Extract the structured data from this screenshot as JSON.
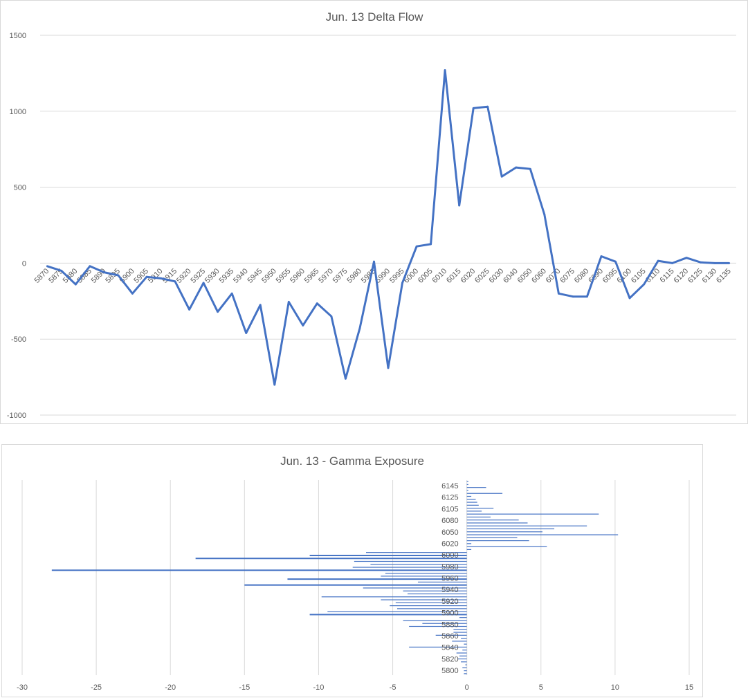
{
  "chart_data": [
    {
      "type": "line",
      "title": "Jun. 13 Delta Flow",
      "xlabel": "",
      "ylabel": "",
      "ylim": [
        -1000,
        1500
      ],
      "yticks": [
        1500,
        1000,
        500,
        0,
        -500,
        -1000
      ],
      "grid": true,
      "legend": "none",
      "color": "#4472c4",
      "x": [
        "5870",
        "5875",
        "5880",
        "5885",
        "5890",
        "5895",
        "5900",
        "5905",
        "5910",
        "5915",
        "5920",
        "5925",
        "5930",
        "5935",
        "5940",
        "5945",
        "5950",
        "5955",
        "5960",
        "5965",
        "5970",
        "5975",
        "5980",
        "5985",
        "5990",
        "5995",
        "6000",
        "6005",
        "6010",
        "6015",
        "6020",
        "6025",
        "6030",
        "6040",
        "6050",
        "6060",
        "6070",
        "6075",
        "6080",
        "6090",
        "6095",
        "6100",
        "6105",
        "6110",
        "6115",
        "6120",
        "6125",
        "6130",
        "6135"
      ],
      "y": [
        -20,
        -50,
        -140,
        -20,
        -60,
        -80,
        -200,
        -90,
        -100,
        -120,
        -305,
        -130,
        -320,
        -200,
        -460,
        -275,
        -800,
        -255,
        -410,
        -265,
        -350,
        -760,
        -430,
        10,
        -690,
        -130,
        110,
        125,
        1270,
        380,
        1020,
        1030,
        570,
        630,
        620,
        320,
        -200,
        -220,
        -220,
        45,
        10,
        -230,
        -140,
        15,
        0,
        35,
        5,
        0,
        0
      ]
    },
    {
      "type": "bar",
      "orientation": "horizontal",
      "title": "Jun. 13 - Gamma Exposure",
      "xlabel": "",
      "ylabel": "",
      "xlim": [
        -30,
        15
      ],
      "xticks": [
        -30,
        -25,
        -20,
        -15,
        -10,
        -5,
        0,
        5,
        10,
        15
      ],
      "grid": true,
      "legend": "none",
      "color": "#4472c4",
      "category_labels": [
        "5800",
        "5820",
        "5840",
        "5860",
        "5880",
        "5900",
        "5920",
        "5940",
        "5960",
        "5980",
        "6000",
        "6020",
        "6050",
        "6080",
        "6105",
        "6125",
        "6145"
      ],
      "values": [
        -0.2,
        -0.2,
        -0.3,
        -0.1,
        -0.4,
        -0.6,
        -0.5,
        -0.7,
        -0.3,
        -3.9,
        -0.2,
        -1.0,
        -0.4,
        -2.1,
        -0.9,
        -0.9,
        -3.9,
        -3.0,
        -4.3,
        -0.5,
        -10.6,
        -9.4,
        -4.7,
        -5.2,
        -4.8,
        -5.8,
        -9.8,
        -4.0,
        -4.3,
        -7.0,
        -15.0,
        -3.3,
        -12.1,
        -5.8,
        -5.5,
        -28.0,
        -7.7,
        -6.5,
        -7.6,
        -18.3,
        -10.6,
        -6.8,
        0.3,
        5.4,
        0.3,
        4.2,
        3.4,
        10.2,
        5.1,
        5.9,
        8.1,
        4.1,
        3.5,
        1.6,
        8.9,
        1.0,
        1.8,
        0.8,
        0.7,
        0.6,
        0.3,
        2.4,
        0.1,
        1.3,
        0.1,
        0.1
      ]
    }
  ]
}
